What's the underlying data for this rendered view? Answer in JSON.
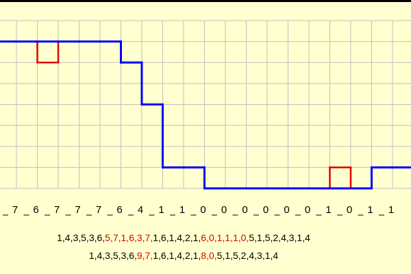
{
  "chart_data": {
    "type": "step",
    "ylim": [
      0,
      8
    ],
    "grid": true,
    "series": [
      {
        "color": "#e00000",
        "values": [
          7,
          6,
          7,
          7,
          7,
          6,
          4,
          1,
          1,
          0,
          0,
          0,
          0,
          0,
          0,
          1,
          0,
          1,
          1
        ]
      },
      {
        "color": "#0000ff",
        "values": [
          7,
          7,
          7,
          7,
          7,
          6,
          4,
          1,
          1,
          0,
          0,
          0,
          0,
          0,
          0,
          0,
          0,
          1,
          1
        ]
      }
    ],
    "text_lines": [
      [
        {
          "text": "1,4,3,5,3,6,",
          "color": "#000000"
        },
        {
          "text": "5,7,1,6,3,7,",
          "color": "#e00000"
        },
        {
          "text": "1,6,1,4,2,1,",
          "color": "#000000"
        },
        {
          "text": "6,0,1,1,1,0,",
          "color": "#e00000"
        },
        {
          "text": "5,1,5,2,4,3,1,4",
          "color": "#000000"
        }
      ],
      [
        {
          "text": "1,4,3,5,3,6,",
          "color": "#000000"
        },
        {
          "text": "9,7,",
          "color": "#e00000"
        },
        {
          "text": "1,6,1,4,2,1,",
          "color": "#000000"
        },
        {
          "text": "8,0,",
          "color": "#e00000"
        },
        {
          "text": "5,1,5,2,4,3,1,4",
          "color": "#000000"
        }
      ]
    ]
  }
}
